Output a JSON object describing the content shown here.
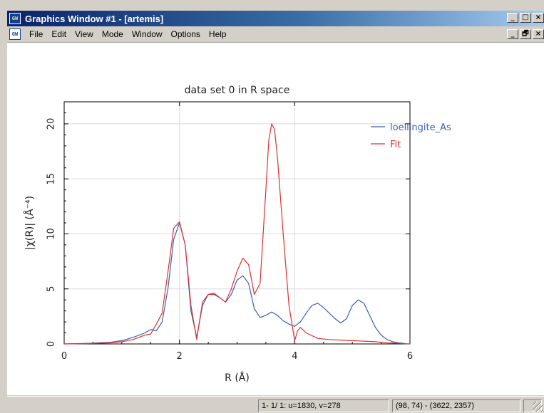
{
  "window": {
    "title": "Graphics Window #1 - [artemis]",
    "app_icon_text": "GW",
    "controls": {
      "minimize": "_",
      "maximize": "□",
      "close": "×",
      "restore": "🗗"
    }
  },
  "menu": {
    "icon_text": "GW",
    "items": [
      "File",
      "Edit",
      "View",
      "Mode",
      "Window",
      "Options",
      "Help"
    ]
  },
  "status": {
    "pane1": "1- 1/ 1: u=1830, v=278",
    "pane2": "(98, 74) - (3622, 2357)",
    "pane3": ""
  },
  "chart_data": {
    "type": "line",
    "title": "data set 0 in R space",
    "xlabel": "R (Å)",
    "ylabel": "|χ(R)| (Å⁻⁴)",
    "xlim": [
      0,
      6
    ],
    "ylim": [
      0,
      22
    ],
    "xticks": [
      0,
      2,
      4,
      6
    ],
    "yticks": [
      0,
      5,
      10,
      15,
      20
    ],
    "grid_x": [
      2,
      4
    ],
    "grid_y": [
      5,
      10,
      15,
      20
    ],
    "legend_position": "top-right",
    "series": [
      {
        "name": "loellingite_As",
        "color": "#3a5fb0",
        "x": [
          0,
          0.4,
          0.8,
          1.0,
          1.2,
          1.4,
          1.5,
          1.6,
          1.7,
          1.8,
          1.9,
          2.0,
          2.1,
          2.2,
          2.3,
          2.4,
          2.5,
          2.6,
          2.7,
          2.8,
          2.9,
          3.0,
          3.1,
          3.2,
          3.3,
          3.4,
          3.5,
          3.6,
          3.7,
          3.8,
          3.9,
          4.0,
          4.1,
          4.2,
          4.3,
          4.4,
          4.5,
          4.6,
          4.7,
          4.8,
          4.9,
          5.0,
          5.1,
          5.2,
          5.3,
          5.4,
          5.5,
          5.6,
          5.7,
          5.8,
          5.9
        ],
        "y": [
          0,
          0.05,
          0.15,
          0.3,
          0.6,
          1.0,
          1.3,
          1.2,
          2.0,
          5.0,
          9.5,
          11.0,
          9.0,
          3.0,
          0.6,
          3.5,
          4.5,
          4.6,
          4.2,
          3.8,
          4.5,
          5.8,
          6.2,
          5.5,
          3.2,
          2.4,
          2.6,
          2.9,
          2.6,
          2.1,
          1.8,
          1.6,
          2.0,
          2.8,
          3.5,
          3.7,
          3.3,
          2.8,
          2.3,
          1.9,
          2.3,
          3.5,
          4.0,
          3.7,
          2.6,
          1.5,
          0.8,
          0.4,
          0.2,
          0.1,
          0.05
        ]
      },
      {
        "name": "Fit",
        "color": "#e03030",
        "x": [
          0,
          0.4,
          0.8,
          1.0,
          1.2,
          1.4,
          1.5,
          1.6,
          1.7,
          1.8,
          1.9,
          2.0,
          2.1,
          2.2,
          2.3,
          2.4,
          2.5,
          2.6,
          2.7,
          2.8,
          2.9,
          3.0,
          3.1,
          3.2,
          3.3,
          3.4,
          3.5,
          3.55,
          3.6,
          3.65,
          3.7,
          3.8,
          3.9,
          4.0,
          4.05,
          4.1,
          4.2,
          4.4,
          4.6,
          4.8,
          5.0,
          5.2,
          5.4,
          5.6,
          5.8,
          6.0
        ],
        "y": [
          0,
          0.03,
          0.1,
          0.2,
          0.4,
          0.8,
          0.9,
          1.8,
          2.8,
          6.5,
          10.5,
          11.1,
          9.0,
          3.5,
          0.4,
          3.8,
          4.5,
          4.5,
          4.2,
          3.8,
          5.0,
          6.6,
          7.8,
          7.2,
          4.5,
          5.5,
          14.0,
          18.5,
          20.0,
          19.5,
          17.0,
          10.0,
          3.5,
          0.3,
          1.2,
          1.5,
          1.0,
          0.5,
          0.4,
          0.35,
          0.3,
          0.25,
          0.2,
          0.1,
          0.05,
          0
        ]
      }
    ]
  }
}
